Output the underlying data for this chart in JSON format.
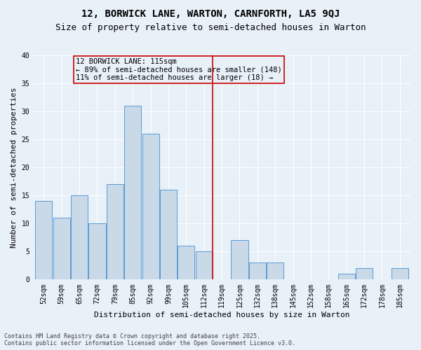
{
  "title": "12, BORWICK LANE, WARTON, CARNFORTH, LA5 9QJ",
  "subtitle": "Size of property relative to semi-detached houses in Warton",
  "xlabel": "Distribution of semi-detached houses by size in Warton",
  "ylabel": "Number of semi-detached properties",
  "categories": [
    "52sqm",
    "59sqm",
    "65sqm",
    "72sqm",
    "79sqm",
    "85sqm",
    "92sqm",
    "99sqm",
    "105sqm",
    "112sqm",
    "119sqm",
    "125sqm",
    "132sqm",
    "138sqm",
    "145sqm",
    "152sqm",
    "158sqm",
    "165sqm",
    "172sqm",
    "178sqm",
    "185sqm"
  ],
  "values": [
    14,
    11,
    15,
    10,
    17,
    31,
    26,
    16,
    6,
    5,
    0,
    7,
    3,
    3,
    0,
    0,
    0,
    1,
    2,
    0,
    2
  ],
  "bar_color": "#c9d9e8",
  "bar_edge_color": "#5b9bd5",
  "vline_x": 9.5,
  "vline_color": "#cc0000",
  "annotation_text": "12 BORWICK LANE: 115sqm\n← 89% of semi-detached houses are smaller (148)\n11% of semi-detached houses are larger (18) →",
  "annotation_box_color": "#cc0000",
  "ylim": [
    0,
    40
  ],
  "yticks": [
    0,
    5,
    10,
    15,
    20,
    25,
    30,
    35,
    40
  ],
  "bg_color": "#e8f0f8",
  "grid_color": "#ffffff",
  "footnote": "Contains HM Land Registry data © Crown copyright and database right 2025.\nContains public sector information licensed under the Open Government Licence v3.0.",
  "title_fontsize": 10,
  "subtitle_fontsize": 9,
  "label_fontsize": 8,
  "tick_fontsize": 7,
  "annotation_fontsize": 7.5,
  "footnote_fontsize": 6
}
